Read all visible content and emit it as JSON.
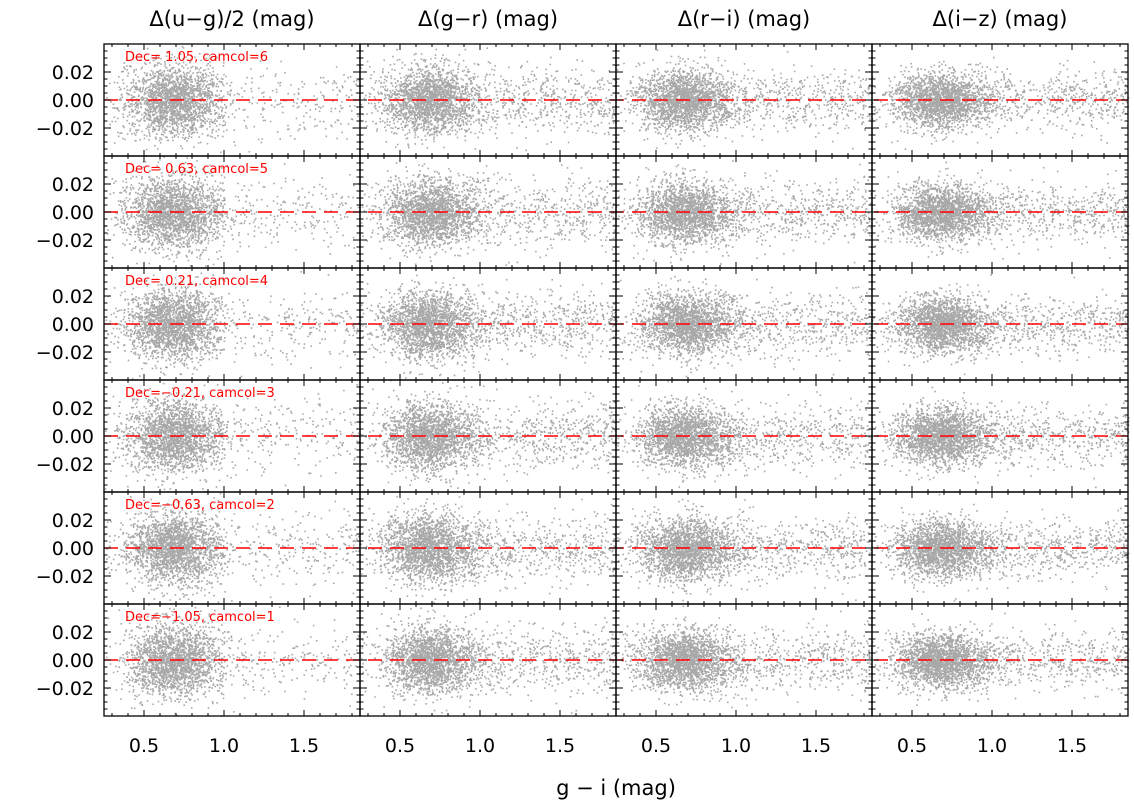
{
  "chart_data": {
    "type": "scatter",
    "column_titles": [
      "Δ(u−g)/2 (mag)",
      "Δ(g−r) (mag)",
      "Δ(r−i) (mag)",
      "Δ(i−z) (mag)"
    ],
    "row_labels": [
      "Dec= 1.05, camcol=6",
      "Dec= 0.63, camcol=5",
      "Dec= 0.21, camcol=4",
      "Dec=−0.21, camcol=3",
      "Dec=−0.63, camcol=2",
      "Dec=−1.05, camcol=1"
    ],
    "xlabel": "g − i (mag)",
    "xlim": [
      0.25,
      1.85
    ],
    "ylim": [
      -0.04,
      0.04
    ],
    "x_ticks": [
      "0.5",
      "1.0",
      "1.5"
    ],
    "x_tick_values": [
      0.5,
      1.0,
      1.5
    ],
    "y_ticks": [
      "0.02",
      "0.00",
      "−0.02"
    ],
    "y_tick_values": [
      0.02,
      0.0,
      -0.02
    ],
    "reference_line_y": 0.0,
    "point_color": "#a8a8a8",
    "reference_line_color": "#ff0000",
    "label_color": "#ff0000",
    "points_per_panel": 2600,
    "x_distribution": {
      "center": 0.68,
      "sigma": 0.15,
      "tail_fraction": 0.2,
      "tail_min": 0.9,
      "tail_max": 1.85
    },
    "y_scatter_sigma": [
      0.013,
      0.012,
      0.011,
      0.01
    ],
    "grid": false
  }
}
